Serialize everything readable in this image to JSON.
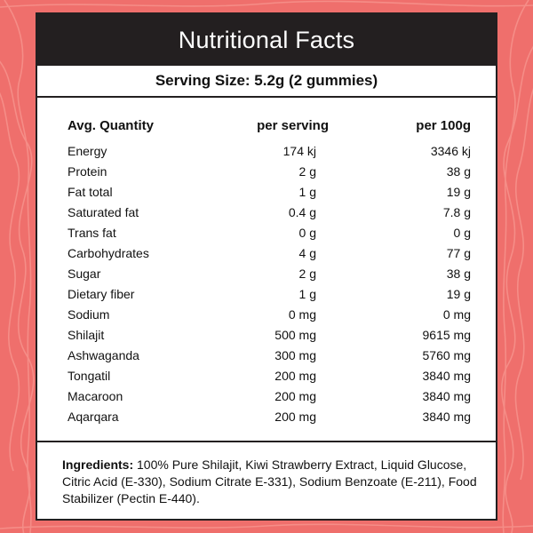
{
  "title": "Nutritional Facts",
  "serving_size": "Serving Size: 5.2g (2 gummies)",
  "columns": [
    "Avg. Quantity",
    "per serving",
    "per 100g"
  ],
  "rows": [
    [
      "Energy",
      "174 kj",
      "3346 kj"
    ],
    [
      "Protein",
      "2 g",
      "38 g"
    ],
    [
      "Fat total",
      "1 g",
      "19 g"
    ],
    [
      "Saturated fat",
      "0.4 g",
      "7.8 g"
    ],
    [
      "Trans fat",
      "0 g",
      "0 g"
    ],
    [
      "Carbohydrates",
      "4 g",
      "77 g"
    ],
    [
      "Sugar",
      "2 g",
      "38 g"
    ],
    [
      "Dietary fiber",
      "1 g",
      "19 g"
    ],
    [
      "Sodium",
      "0 mg",
      "0 mg"
    ],
    [
      "Shilajit",
      "500 mg",
      "9615 mg"
    ],
    [
      "Ashwaganda",
      "300 mg",
      "5760 mg"
    ],
    [
      "Tongatil",
      "200 mg",
      "3840 mg"
    ],
    [
      "Macaroon",
      "200 mg",
      "3840 mg"
    ],
    [
      "Aqarqara",
      "200 mg",
      "3840 mg"
    ]
  ],
  "ingredients": {
    "label": "Ingredients:",
    "text": " 100% Pure Shilajit, Kiwi Strawberry Extract, Liquid Glucose, Citric Acid (E-330), Sodium Citrate E-331), Sodium Benzoate (E-211), Food Stabilizer (Pectin E-440)."
  },
  "colors": {
    "background": "#ef6f6c",
    "pattern_lines": "#f58d87",
    "header": "#231f20",
    "card": "#ffffff"
  }
}
